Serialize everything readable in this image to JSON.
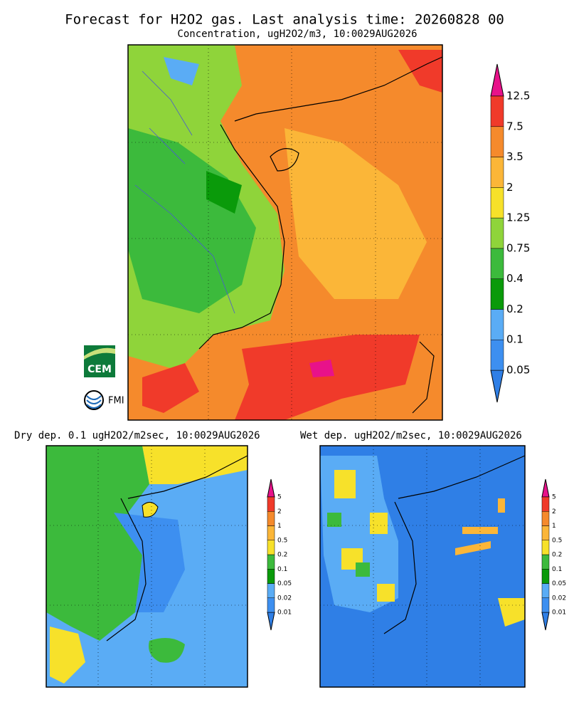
{
  "title": "Forecast for H2O2 gas. Last analysis time: 20260828 00",
  "main_panel": {
    "subtitle": "Concentration, ugH2O2/m3, 10:0029AUG2026",
    "colorbar": {
      "labels": [
        "0.05",
        "0.1",
        "0.2",
        "0.4",
        "0.75",
        "1.25",
        "2",
        "3.5",
        "7.5",
        "12.5"
      ],
      "colors": [
        "#2f7fe6",
        "#3d8ff0",
        "#5aacf5",
        "#0a9a0a",
        "#3cba3c",
        "#8fd43a",
        "#f7e12a",
        "#fbb638",
        "#f58a2c",
        "#f03a2a",
        "#e8128a"
      ]
    }
  },
  "dry_panel": {
    "title": "Dry dep. 0.1 ugH2O2/m2sec, 10:0029AUG2026",
    "colorbar": {
      "labels": [
        "0.01",
        "0.02",
        "0.05",
        "0.1",
        "0.2",
        "0.5",
        "1",
        "2",
        "5"
      ],
      "colors": [
        "#2f7fe6",
        "#3d8ff0",
        "#5aacf5",
        "#0a9a0a",
        "#3cba3c",
        "#f7e12a",
        "#fbb638",
        "#f58a2c",
        "#f03a2a",
        "#e8128a"
      ]
    }
  },
  "wet_panel": {
    "title": "Wet dep. ugH2O2/m2sec, 10:0029AUG2026",
    "colorbar": {
      "labels": [
        "0.01",
        "0.02",
        "0.05",
        "0.1",
        "0.2",
        "0.5",
        "1",
        "2",
        "5"
      ],
      "colors": [
        "#2f7fe6",
        "#3d8ff0",
        "#5aacf5",
        "#0a9a0a",
        "#3cba3c",
        "#f7e12a",
        "#fbb638",
        "#f58a2c",
        "#f03a2a",
        "#e8128a"
      ]
    }
  },
  "logos": {
    "cem": "CEM",
    "fmi": "FMI"
  }
}
